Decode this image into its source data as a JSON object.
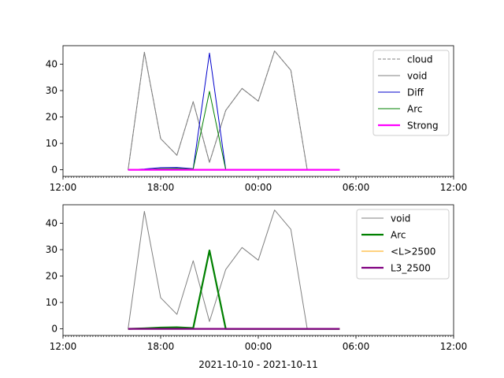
{
  "chart_data": [
    {
      "type": "line",
      "x": [
        "16:00",
        "17:00",
        "18:00",
        "19:00",
        "20:00",
        "21:00",
        "22:00",
        "23:00",
        "00:00",
        "01:00",
        "02:00",
        "03:00",
        "04:00",
        "05:00"
      ],
      "xlim": [
        "12:00",
        "12:00"
      ],
      "xticks": [
        "12:00",
        "18:00",
        "00:00",
        "06:00",
        "12:00"
      ],
      "ylim": [
        -2.5,
        47
      ],
      "yticks": [
        0,
        10,
        20,
        30,
        40
      ],
      "legend_position": "upper-right",
      "series": [
        {
          "name": "cloud",
          "color": "#808080",
          "style": "dashed",
          "values": [
            0,
            44.5,
            11.8,
            5.5,
            25.8,
            2.8,
            22.5,
            30.8,
            26,
            45,
            37.7,
            0.2,
            0,
            null
          ]
        },
        {
          "name": "void",
          "color": "#808080",
          "style": "solid",
          "values": [
            0,
            44.5,
            11.8,
            5.5,
            25.8,
            2.8,
            22.5,
            30.8,
            26,
            45,
            37.7,
            0.2,
            0,
            null
          ]
        },
        {
          "name": "Diff",
          "color": "#0000cc",
          "style": "solid",
          "values": [
            0,
            0.3,
            0.8,
            0.9,
            0.4,
            44.2,
            0,
            0,
            0,
            0,
            0,
            0,
            0,
            0
          ]
        },
        {
          "name": "Arc",
          "color": "#008000",
          "style": "solid",
          "values": [
            0,
            0.1,
            0.4,
            0.5,
            0.3,
            29.7,
            0,
            0,
            0,
            0,
            0,
            0,
            0,
            0
          ]
        },
        {
          "name": "Strong",
          "color": "#ff00ff",
          "style": "thick",
          "values": [
            0,
            0,
            0,
            0,
            0,
            0,
            0,
            0,
            0,
            0,
            0,
            0,
            0,
            0
          ]
        }
      ]
    },
    {
      "type": "line",
      "x": [
        "16:00",
        "17:00",
        "18:00",
        "19:00",
        "20:00",
        "21:00",
        "22:00",
        "23:00",
        "00:00",
        "01:00",
        "02:00",
        "03:00",
        "04:00",
        "05:00"
      ],
      "xlim": [
        "12:00",
        "12:00"
      ],
      "xticks": [
        "12:00",
        "18:00",
        "00:00",
        "06:00",
        "12:00"
      ],
      "ylim": [
        -2.5,
        47
      ],
      "yticks": [
        0,
        10,
        20,
        30,
        40
      ],
      "xlabel": "2021-10-10 - 2021-10-11",
      "legend_position": "upper-right",
      "series": [
        {
          "name": "void",
          "color": "#808080",
          "style": "solid",
          "values": [
            0,
            44.5,
            11.8,
            5.5,
            25.8,
            2.8,
            22.5,
            30.8,
            26,
            45,
            37.7,
            0.2,
            0,
            null
          ]
        },
        {
          "name": "Arc",
          "color": "#008000",
          "style": "thick",
          "values": [
            0,
            0.2,
            0.5,
            0.6,
            0.3,
            29.7,
            0,
            0,
            0,
            0,
            0,
            0,
            0,
            0
          ]
        },
        {
          "name": "<L>2500",
          "color": "#ffa500",
          "style": "solid",
          "values": [
            0,
            0,
            0,
            0,
            0,
            0,
            0,
            0,
            0,
            0,
            0,
            0,
            0,
            0
          ]
        },
        {
          "name": "L3_2500",
          "color": "#800080",
          "style": "thick",
          "values": [
            0,
            0,
            0,
            0,
            0,
            0,
            0,
            0,
            0,
            0,
            0,
            0,
            0,
            0
          ]
        }
      ]
    }
  ]
}
